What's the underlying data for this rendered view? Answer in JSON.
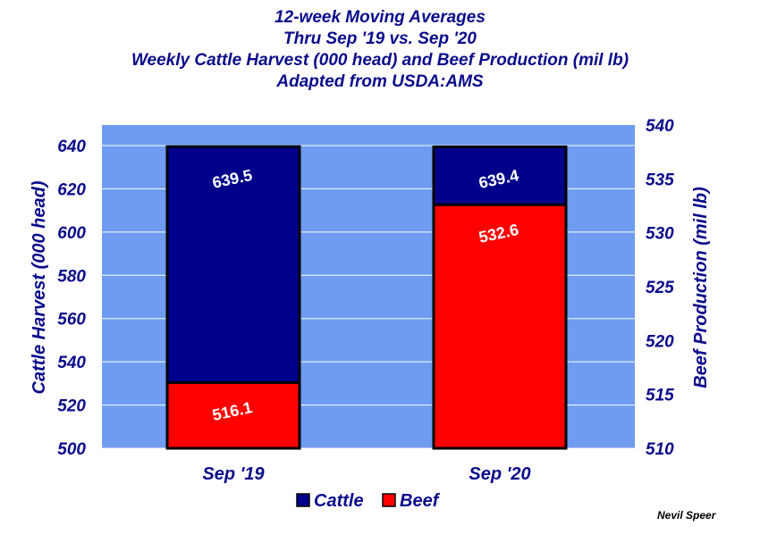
{
  "chart_data": {
    "type": "bar",
    "title_lines": [
      "12-week Moving Averages",
      "Thru Sep '19 vs. Sep '20",
      "Weekly Cattle Harvest (000 head) and Beef Production (mil lb)",
      "Adapted from USDA:AMS"
    ],
    "categories": [
      "Sep '19",
      "Sep '20"
    ],
    "series": [
      {
        "name": "Cattle",
        "axis": "left",
        "values": [
          639.5,
          639.4
        ],
        "labels": [
          "639.5",
          "639.4"
        ],
        "color": "#00008b"
      },
      {
        "name": "Beef",
        "axis": "right",
        "values": [
          516.1,
          532.6
        ],
        "labels": [
          "516.1",
          "532.6"
        ],
        "color": "#ff0000"
      }
    ],
    "ylabel": "Cattle Harvest (000 head)",
    "ylabel_right": "Beef Production (mil lb)",
    "ylim": [
      500,
      640
    ],
    "ylim_right": [
      510,
      540
    ],
    "yticks": [
      "500",
      "520",
      "540",
      "560",
      "580",
      "600",
      "620",
      "640"
    ],
    "yticks_right": [
      "510",
      "515",
      "520",
      "525",
      "530",
      "535",
      "540"
    ],
    "plot_background": "#6f9cf0",
    "grid": true,
    "legend_position": "bottom"
  },
  "credit": "Nevil Speer"
}
